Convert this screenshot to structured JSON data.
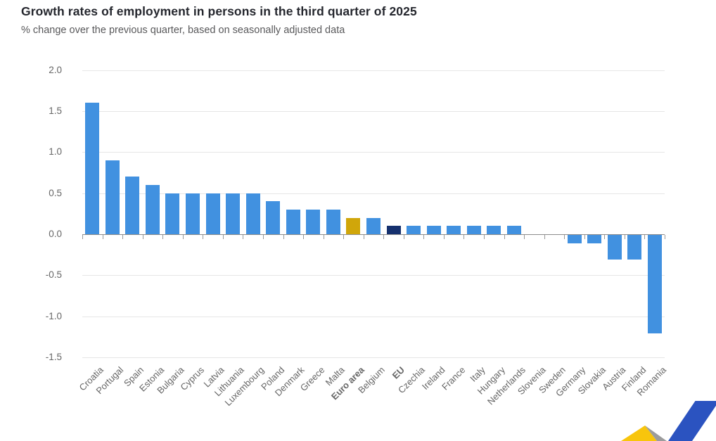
{
  "chart_data": {
    "type": "bar",
    "title": "Growth rates of employment in persons in the third quarter of 2025",
    "subtitle": "% change over the previous quarter, based on seasonally adjusted data",
    "unit": "%",
    "categories": [
      "Croatia",
      "Portugal",
      "Spain",
      "Estonia",
      "Bulgaria",
      "Cyprus",
      "Latvia",
      "Lithuania",
      "Luxembourg",
      "Poland",
      "Denmark",
      "Greece",
      "Malta",
      "Euro area",
      "Belgium",
      "EU",
      "Czechia",
      "Ireland",
      "France",
      "Italy",
      "Hungary",
      "Netherlands",
      "Slovenia",
      "Sweden",
      "Germany",
      "Slovakia",
      "Austria",
      "Finland",
      "Romania"
    ],
    "values": [
      1.6,
      0.9,
      0.7,
      0.6,
      0.5,
      0.5,
      0.5,
      0.5,
      0.5,
      0.4,
      0.3,
      0.3,
      0.3,
      0.2,
      0.2,
      0.1,
      0.1,
      0.1,
      0.1,
      0.1,
      0.1,
      0.1,
      0.0,
      0.0,
      -0.1,
      -0.1,
      -0.3,
      -0.3,
      -1.2
    ],
    "highlights": {
      "Euro area": "euro_area",
      "EU": "eu"
    },
    "bold_labels": [
      "Euro area",
      "EU"
    ],
    "yticks": [
      2.0,
      1.5,
      1.0,
      0.5,
      0.0,
      -0.5,
      -1.0,
      -1.5
    ],
    "ylim": [
      -1.5,
      2.0
    ],
    "xlabel": "",
    "ylabel": "",
    "x_label_rotation": -45,
    "grid": true,
    "legend": "none"
  },
  "colors": {
    "bar_default": "#4191E0",
    "bar_euro_area": "#D0A60A",
    "bar_eu": "#15306E",
    "gridline": "#E6E6E6",
    "axis_line": "#8C8C8C",
    "tick": "#999999",
    "title_text": "#25272E",
    "subtitle_text": "#58585A",
    "axis_label_text": "#666666",
    "logo_yellow": "#F8C50C",
    "logo_gray": "#9C9C9C",
    "logo_blue": "#2B53C0"
  }
}
